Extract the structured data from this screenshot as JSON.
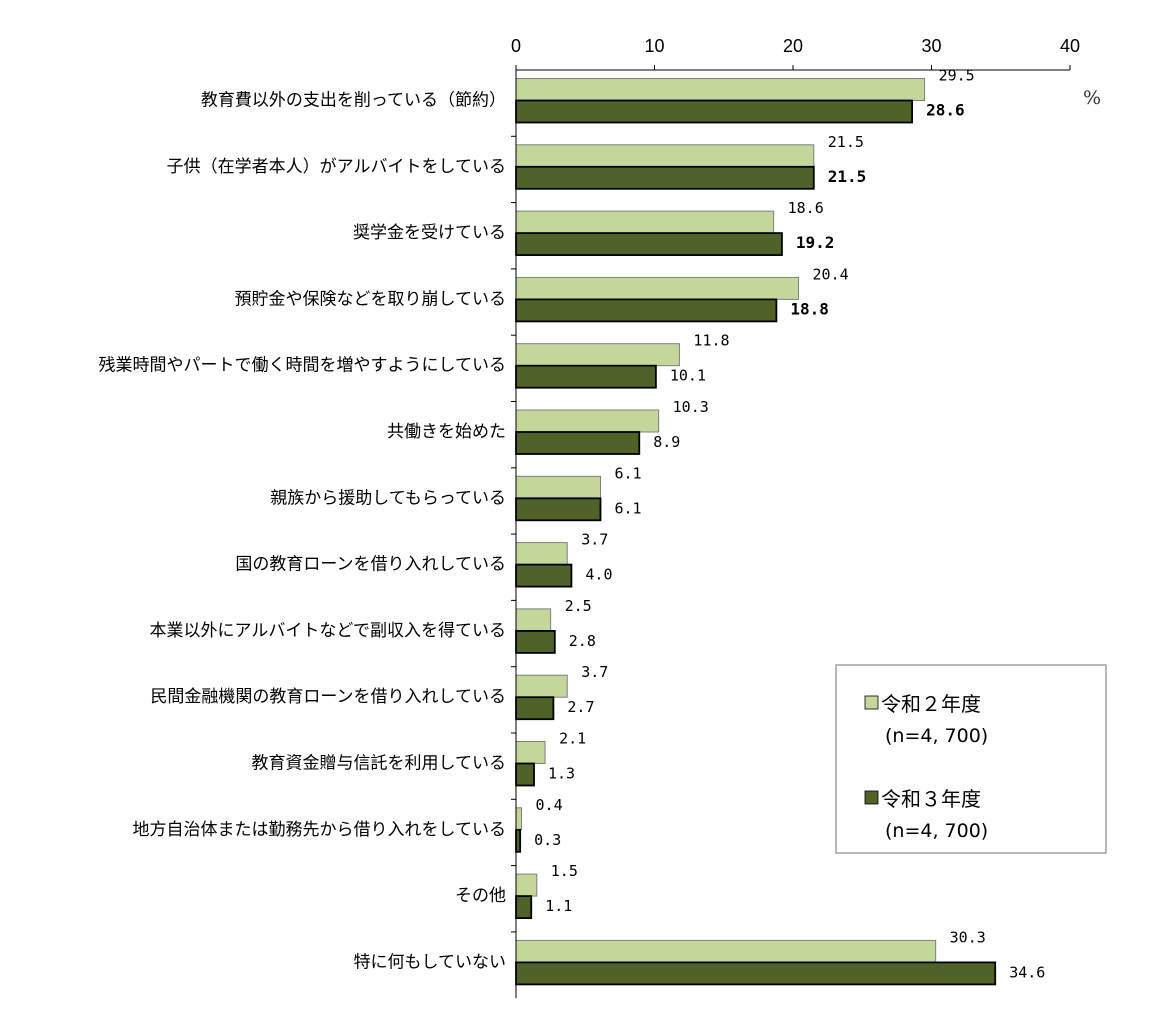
{
  "chart_data": {
    "type": "bar",
    "orientation": "horizontal",
    "title": "",
    "unit": "%",
    "xlim": [
      0,
      40
    ],
    "xticks": [
      0,
      10,
      20,
      30,
      40
    ],
    "grid": false,
    "legend_position": "bottom-right",
    "categories": [
      "教育費以外の支出を削っている（節約）",
      "子供（在学者本人）がアルバイトをしている",
      "奨学金を受けている",
      "預貯金や保険などを取り崩している",
      "残業時間やパートで働く時間を増やすようにしている",
      "共働きを始めた",
      "親族から援助してもらっている",
      "国の教育ローンを借り入れしている",
      "本業以外にアルバイトなどで副収入を得ている",
      "民間金融機関の教育ローンを借り入れしている",
      "教育資金贈与信託を利用している",
      "地方自治体または勤務先から借り入れをしている",
      "その他",
      "特に何もしていない"
    ],
    "series": [
      {
        "name": "令和２年度",
        "n_label": "(n=4, 700)",
        "color": "#c4d79b",
        "values": [
          29.5,
          21.5,
          18.6,
          20.4,
          11.8,
          10.3,
          6.1,
          3.7,
          2.5,
          3.7,
          2.1,
          0.4,
          1.5,
          30.3
        ],
        "value_labels": [
          "29.5",
          "21.5",
          "18.6",
          "20.4",
          "11.8",
          "10.3",
          "6.1",
          "3.7",
          "2.5",
          "3.7",
          "2.1",
          "0.4",
          "1.5",
          "30.3"
        ]
      },
      {
        "name": "令和３年度",
        "n_label": "(n=4, 700)",
        "color": "#4f6228",
        "values": [
          28.6,
          21.5,
          19.2,
          18.8,
          10.1,
          8.9,
          6.1,
          4.0,
          2.8,
          2.7,
          1.3,
          0.3,
          1.1,
          34.6
        ],
        "value_labels": [
          "28.6",
          "21.5",
          "19.2",
          "18.8",
          "10.1",
          "8.9",
          "6.1",
          "4.0",
          "2.8",
          "2.7",
          "1.3",
          "0.3",
          "1.1",
          "34.6"
        ],
        "bold_labels": [
          true,
          true,
          true,
          true,
          false,
          false,
          false,
          false,
          false,
          false,
          false,
          false,
          false,
          false
        ]
      }
    ]
  }
}
